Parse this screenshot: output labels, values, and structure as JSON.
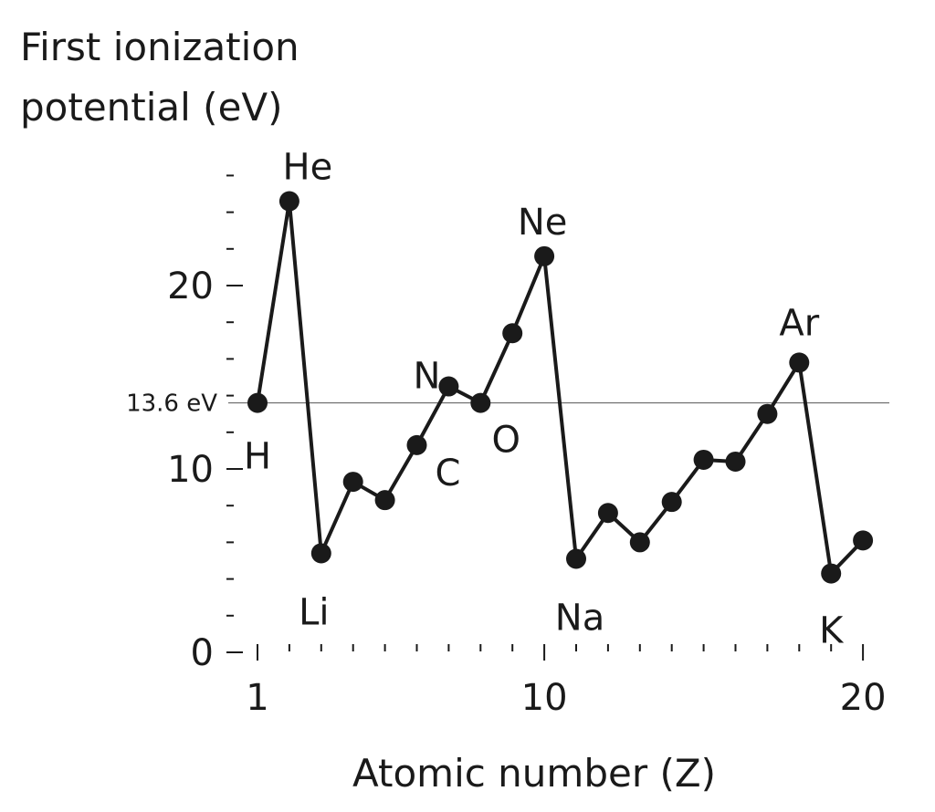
{
  "chart_data": {
    "type": "line",
    "title": "",
    "ylabel_lines": [
      "First ionization",
      "potential (eV)"
    ],
    "xlabel": "Atomic number (Z)",
    "xlim": [
      1,
      20
    ],
    "ylim": [
      0,
      26
    ],
    "x_ticks": [
      1,
      10,
      20
    ],
    "y_ticks": [
      0,
      10,
      20
    ],
    "grid": false,
    "reference_line": {
      "value": 13.6,
      "label": "13.6 eV"
    },
    "series": [
      {
        "x": [
          1,
          2,
          3,
          4,
          5,
          6,
          7,
          8,
          9,
          10,
          11,
          12,
          13,
          14,
          15,
          16,
          17,
          18,
          19,
          20
        ],
        "y": [
          13.6,
          24.6,
          5.4,
          9.3,
          8.3,
          11.3,
          14.5,
          13.6,
          17.4,
          21.6,
          5.1,
          7.6,
          6.0,
          8.2,
          10.5,
          10.4,
          13.0,
          15.8,
          4.3,
          6.1
        ]
      }
    ],
    "point_labels": [
      {
        "x": 1,
        "text": "H"
      },
      {
        "x": 2,
        "text": "He"
      },
      {
        "x": 3,
        "text": "Li"
      },
      {
        "x": 6,
        "text": "C"
      },
      {
        "x": 7,
        "text": "N"
      },
      {
        "x": 8,
        "text": "O"
      },
      {
        "x": 10,
        "text": "Ne"
      },
      {
        "x": 11,
        "text": "Na"
      },
      {
        "x": 18,
        "text": "Ar"
      },
      {
        "x": 19,
        "text": "K"
      }
    ]
  }
}
